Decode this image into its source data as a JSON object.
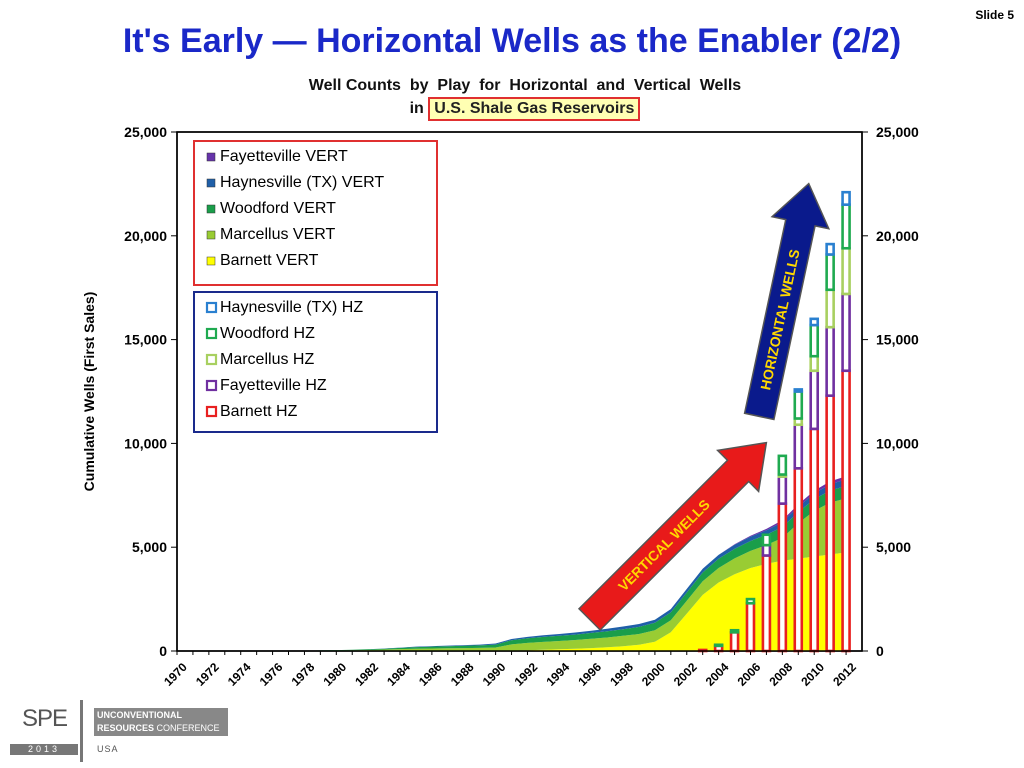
{
  "slide": {
    "number_label": "Slide 5",
    "title": "It's Early — Horizontal Wells as the Enabler (2/2)"
  },
  "chart_data": {
    "type": "area",
    "title_line1": "Well Counts  by  Play  for  Horizontal  and  Vertical  Wells",
    "title_prefix": "in",
    "title_highlight": "U.S. Shale Gas Reservoirs",
    "ylabel": "Cumulative Wells (First Sales)",
    "ylim": [
      0,
      25000
    ],
    "y_ticks": [
      "0",
      "5,000",
      "10,000",
      "15,000",
      "20,000",
      "25,000"
    ],
    "x_tick_labels": [
      "1970",
      "1972",
      "1974",
      "1976",
      "1978",
      "1980",
      "1982",
      "1984",
      "1986",
      "1988",
      "1990",
      "1992",
      "1994",
      "1996",
      "1998",
      "2000",
      "2002",
      "2004",
      "2006",
      "2008",
      "2010",
      "2012"
    ],
    "years": [
      1970,
      1971,
      1972,
      1973,
      1974,
      1975,
      1976,
      1977,
      1978,
      1979,
      1980,
      1981,
      1982,
      1983,
      1984,
      1985,
      1986,
      1987,
      1988,
      1989,
      1990,
      1991,
      1992,
      1993,
      1994,
      1995,
      1996,
      1997,
      1998,
      1999,
      2000,
      2001,
      2002,
      2003,
      2004,
      2005,
      2006,
      2007,
      2008,
      2009,
      2010,
      2011,
      2012
    ],
    "vertical_series": [
      {
        "name": "Barnett VERT",
        "color": "#ffff00",
        "values": [
          0,
          0,
          0,
          0,
          0,
          0,
          0,
          0,
          0,
          0,
          0,
          0,
          0,
          0,
          0,
          0,
          0,
          0,
          0,
          0,
          0,
          20,
          40,
          60,
          80,
          110,
          140,
          180,
          230,
          300,
          450,
          900,
          1800,
          2700,
          3300,
          3700,
          4000,
          4200,
          4350,
          4450,
          4550,
          4650,
          4750
        ]
      },
      {
        "name": "Marcellus VERT",
        "color": "#99cc33",
        "values": [
          0,
          0,
          0,
          0,
          0,
          0,
          0,
          5,
          10,
          20,
          30,
          40,
          50,
          70,
          90,
          110,
          120,
          130,
          140,
          150,
          170,
          300,
          350,
          380,
          400,
          420,
          450,
          470,
          500,
          520,
          550,
          580,
          620,
          660,
          700,
          760,
          820,
          900,
          1100,
          1700,
          2200,
          2500,
          2600
        ]
      },
      {
        "name": "Woodford VERT",
        "color": "#1a9e4a",
        "values": [
          0,
          0,
          0,
          0,
          0,
          0,
          0,
          0,
          5,
          10,
          15,
          20,
          30,
          40,
          60,
          80,
          90,
          100,
          110,
          120,
          140,
          200,
          220,
          240,
          250,
          260,
          280,
          300,
          320,
          340,
          360,
          380,
          400,
          420,
          440,
          460,
          480,
          500,
          520,
          540,
          560,
          580,
          600
        ]
      },
      {
        "name": "Haynesville (TX) VERT",
        "color": "#1f5fa8",
        "values": [
          0,
          0,
          0,
          0,
          0,
          0,
          0,
          0,
          0,
          0,
          0,
          0,
          5,
          10,
          15,
          20,
          25,
          30,
          35,
          40,
          50,
          60,
          70,
          80,
          90,
          100,
          110,
          120,
          130,
          140,
          150,
          160,
          170,
          180,
          190,
          200,
          210,
          220,
          240,
          260,
          280,
          300,
          320
        ]
      },
      {
        "name": "Fayetteville VERT",
        "color": "#6633aa",
        "values": [
          0,
          0,
          0,
          0,
          0,
          0,
          0,
          0,
          0,
          0,
          0,
          0,
          0,
          0,
          0,
          0,
          0,
          0,
          0,
          0,
          0,
          0,
          0,
          0,
          0,
          0,
          0,
          0,
          0,
          0,
          0,
          0,
          0,
          0,
          0,
          20,
          40,
          60,
          90,
          110,
          130,
          140,
          150
        ]
      }
    ],
    "horizontal_years": [
      2003,
      2004,
      2005,
      2006,
      2007,
      2008,
      2009,
      2010,
      2011,
      2012
    ],
    "horizontal_series": [
      {
        "name": "Barnett  HZ",
        "color": "#e82020",
        "values": [
          50,
          250,
          900,
          2300,
          4600,
          7100,
          8800,
          10700,
          12300,
          13500
        ]
      },
      {
        "name": "Fayetteville HZ",
        "color": "#7030a0",
        "values": [
          0,
          0,
          0,
          0,
          500,
          1300,
          2100,
          2800,
          3300,
          3700
        ]
      },
      {
        "name": "Marcellus HZ",
        "color": "#a8d060",
        "values": [
          0,
          0,
          0,
          0,
          0,
          100,
          300,
          700,
          1800,
          2200
        ]
      },
      {
        "name": "Woodford HZ",
        "color": "#1faa50",
        "values": [
          0,
          50,
          100,
          200,
          500,
          900,
          1300,
          1500,
          1700,
          2100
        ]
      },
      {
        "name": "Haynesville (TX) HZ",
        "color": "#2a80d0",
        "values": [
          0,
          0,
          0,
          0,
          0,
          0,
          100,
          300,
          500,
          600
        ]
      }
    ],
    "legend_vertical_order": [
      "Fayetteville VERT",
      "Haynesville (TX) VERT",
      "Woodford VERT",
      "Marcellus VERT",
      "Barnett VERT"
    ],
    "legend_horizontal_order": [
      "Haynesville (TX) HZ",
      "Woodford HZ",
      "Marcellus HZ",
      "Fayetteville HZ",
      "Barnett  HZ"
    ],
    "annotations": {
      "horizontal_arrow_label": "HORIZONTAL WELLS",
      "vertical_arrow_label": "VERTICAL WELLS",
      "horizontal_arrow_color": "#0a1a8c",
      "vertical_arrow_color": "#e81a1a"
    },
    "grid": false,
    "legend_placement": "top-left"
  },
  "logo": {
    "spe": "SPE",
    "year": "2013",
    "line1": "UNCONVENTIONAL",
    "line2": "RESOURCES",
    "line2b": " CONFERENCE",
    "usa": "USA"
  }
}
